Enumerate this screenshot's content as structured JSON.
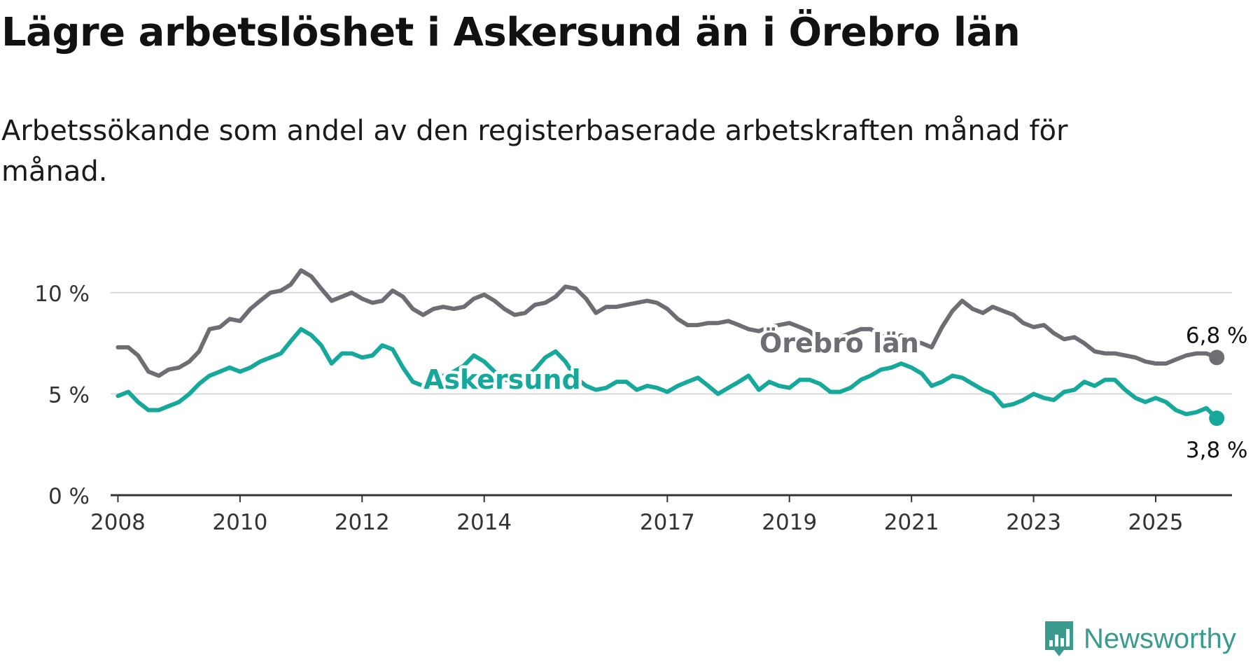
{
  "title": "Lägre arbetslöshet i Askersund än i Örebro län",
  "subtitle": "Arbetssökande som andel av den registerbaserade arbetskraften månad för månad.",
  "brand": {
    "name": "Newsworthy",
    "icon": "newsworthy-logo-icon",
    "color": "#3a9a8e"
  },
  "chart_data": {
    "type": "line",
    "x_axis": {
      "type": "time",
      "range": [
        2007.88,
        2026.25
      ],
      "ticks": [
        2008,
        2010,
        2012,
        2014,
        2017,
        2019,
        2021,
        2023,
        2025
      ],
      "tick_labels": [
        "2008",
        "2010",
        "2012",
        "2014",
        "2017",
        "2019",
        "2021",
        "2023",
        "2025"
      ]
    },
    "y_axis": {
      "range": [
        0,
        12
      ],
      "ticks": [
        0,
        5,
        10
      ],
      "tick_labels": [
        "0 %",
        "5 %",
        "10 %"
      ]
    },
    "grid": true,
    "series": [
      {
        "name": "Örebro län",
        "color": "#6e6d73",
        "end_label": "6,8 %",
        "end_value": 6.8,
        "points": [
          [
            2008.0,
            7.3
          ],
          [
            2008.17,
            7.3
          ],
          [
            2008.33,
            6.9
          ],
          [
            2008.5,
            6.1
          ],
          [
            2008.67,
            5.9
          ],
          [
            2008.83,
            6.2
          ],
          [
            2009.0,
            6.3
          ],
          [
            2009.17,
            6.6
          ],
          [
            2009.33,
            7.1
          ],
          [
            2009.5,
            8.2
          ],
          [
            2009.67,
            8.3
          ],
          [
            2009.83,
            8.7
          ],
          [
            2010.0,
            8.6
          ],
          [
            2010.17,
            9.2
          ],
          [
            2010.33,
            9.6
          ],
          [
            2010.5,
            10.0
          ],
          [
            2010.67,
            10.1
          ],
          [
            2010.83,
            10.4
          ],
          [
            2011.0,
            11.1
          ],
          [
            2011.17,
            10.8
          ],
          [
            2011.33,
            10.2
          ],
          [
            2011.5,
            9.6
          ],
          [
            2011.67,
            9.8
          ],
          [
            2011.83,
            10.0
          ],
          [
            2012.0,
            9.7
          ],
          [
            2012.17,
            9.5
          ],
          [
            2012.33,
            9.6
          ],
          [
            2012.5,
            10.1
          ],
          [
            2012.67,
            9.8
          ],
          [
            2012.83,
            9.2
          ],
          [
            2013.0,
            8.9
          ],
          [
            2013.17,
            9.2
          ],
          [
            2013.33,
            9.3
          ],
          [
            2013.5,
            9.2
          ],
          [
            2013.67,
            9.3
          ],
          [
            2013.83,
            9.7
          ],
          [
            2014.0,
            9.9
          ],
          [
            2014.17,
            9.6
          ],
          [
            2014.33,
            9.2
          ],
          [
            2014.5,
            8.9
          ],
          [
            2014.67,
            9.0
          ],
          [
            2014.83,
            9.4
          ],
          [
            2015.0,
            9.5
          ],
          [
            2015.17,
            9.8
          ],
          [
            2015.33,
            10.3
          ],
          [
            2015.5,
            10.2
          ],
          [
            2015.67,
            9.7
          ],
          [
            2015.83,
            9.0
          ],
          [
            2016.0,
            9.3
          ],
          [
            2016.17,
            9.3
          ],
          [
            2016.33,
            9.4
          ],
          [
            2016.5,
            9.5
          ],
          [
            2016.67,
            9.6
          ],
          [
            2016.83,
            9.5
          ],
          [
            2017.0,
            9.2
          ],
          [
            2017.17,
            8.7
          ],
          [
            2017.33,
            8.4
          ],
          [
            2017.5,
            8.4
          ],
          [
            2017.67,
            8.5
          ],
          [
            2017.83,
            8.5
          ],
          [
            2018.0,
            8.6
          ],
          [
            2018.17,
            8.4
          ],
          [
            2018.33,
            8.2
          ],
          [
            2018.5,
            8.1
          ],
          [
            2018.67,
            8.3
          ],
          [
            2018.83,
            8.4
          ],
          [
            2019.0,
            8.5
          ],
          [
            2019.17,
            8.3
          ],
          [
            2019.33,
            8.1
          ],
          [
            2019.5,
            7.6
          ],
          [
            2019.67,
            7.7
          ],
          [
            2019.83,
            7.8
          ],
          [
            2020.0,
            8.0
          ],
          [
            2020.17,
            8.2
          ],
          [
            2020.33,
            8.2
          ],
          [
            2020.5,
            7.9
          ],
          [
            2020.67,
            7.6
          ],
          [
            2020.83,
            7.9
          ],
          [
            2021.0,
            7.6
          ],
          [
            2021.17,
            7.5
          ],
          [
            2021.33,
            7.3
          ],
          [
            2021.5,
            8.3
          ],
          [
            2021.67,
            9.1
          ],
          [
            2021.83,
            9.6
          ],
          [
            2022.0,
            9.2
          ],
          [
            2022.17,
            9.0
          ],
          [
            2022.33,
            9.3
          ],
          [
            2022.5,
            9.1
          ],
          [
            2022.67,
            8.9
          ],
          [
            2022.83,
            8.5
          ],
          [
            2023.0,
            8.3
          ],
          [
            2023.17,
            8.4
          ],
          [
            2023.33,
            8.0
          ],
          [
            2023.5,
            7.7
          ],
          [
            2023.67,
            7.8
          ],
          [
            2023.83,
            7.5
          ],
          [
            2024.0,
            7.1
          ],
          [
            2024.17,
            7.0
          ],
          [
            2024.33,
            7.0
          ],
          [
            2024.5,
            6.9
          ],
          [
            2024.67,
            6.8
          ],
          [
            2024.83,
            6.6
          ],
          [
            2025.0,
            6.5
          ],
          [
            2025.17,
            6.5
          ],
          [
            2025.33,
            6.7
          ],
          [
            2025.5,
            6.9
          ],
          [
            2025.67,
            7.0
          ],
          [
            2025.83,
            7.0
          ],
          [
            2026.0,
            6.8
          ]
        ]
      },
      {
        "name": "Askersund",
        "color": "#16a89b",
        "end_label": "3,8 %",
        "end_value": 3.8,
        "points": [
          [
            2008.0,
            4.9
          ],
          [
            2008.17,
            5.1
          ],
          [
            2008.33,
            4.6
          ],
          [
            2008.5,
            4.2
          ],
          [
            2008.67,
            4.2
          ],
          [
            2008.83,
            4.4
          ],
          [
            2009.0,
            4.6
          ],
          [
            2009.17,
            5.0
          ],
          [
            2009.33,
            5.5
          ],
          [
            2009.5,
            5.9
          ],
          [
            2009.67,
            6.1
          ],
          [
            2009.83,
            6.3
          ],
          [
            2010.0,
            6.1
          ],
          [
            2010.17,
            6.3
          ],
          [
            2010.33,
            6.6
          ],
          [
            2010.5,
            6.8
          ],
          [
            2010.67,
            7.0
          ],
          [
            2010.83,
            7.6
          ],
          [
            2011.0,
            8.2
          ],
          [
            2011.17,
            7.9
          ],
          [
            2011.33,
            7.4
          ],
          [
            2011.5,
            6.5
          ],
          [
            2011.67,
            7.0
          ],
          [
            2011.83,
            7.0
          ],
          [
            2012.0,
            6.8
          ],
          [
            2012.17,
            6.9
          ],
          [
            2012.33,
            7.4
          ],
          [
            2012.5,
            7.2
          ],
          [
            2012.67,
            6.3
          ],
          [
            2012.83,
            5.6
          ],
          [
            2013.0,
            5.4
          ],
          [
            2013.17,
            5.6
          ],
          [
            2013.33,
            5.9
          ],
          [
            2013.5,
            6.1
          ],
          [
            2013.67,
            6.4
          ],
          [
            2013.83,
            6.9
          ],
          [
            2014.0,
            6.6
          ],
          [
            2014.17,
            6.1
          ],
          [
            2014.33,
            5.7
          ],
          [
            2014.5,
            5.6
          ],
          [
            2014.67,
            5.8
          ],
          [
            2014.83,
            6.2
          ],
          [
            2015.0,
            6.8
          ],
          [
            2015.17,
            7.1
          ],
          [
            2015.33,
            6.6
          ],
          [
            2015.5,
            5.8
          ],
          [
            2015.67,
            5.4
          ],
          [
            2015.83,
            5.2
          ],
          [
            2016.0,
            5.3
          ],
          [
            2016.17,
            5.6
          ],
          [
            2016.33,
            5.6
          ],
          [
            2016.5,
            5.2
          ],
          [
            2016.67,
            5.4
          ],
          [
            2016.83,
            5.3
          ],
          [
            2017.0,
            5.1
          ],
          [
            2017.17,
            5.4
          ],
          [
            2017.33,
            5.6
          ],
          [
            2017.5,
            5.8
          ],
          [
            2017.67,
            5.4
          ],
          [
            2017.83,
            5.0
          ],
          [
            2018.0,
            5.3
          ],
          [
            2018.17,
            5.6
          ],
          [
            2018.33,
            5.9
          ],
          [
            2018.5,
            5.2
          ],
          [
            2018.67,
            5.6
          ],
          [
            2018.83,
            5.4
          ],
          [
            2019.0,
            5.3
          ],
          [
            2019.17,
            5.7
          ],
          [
            2019.33,
            5.7
          ],
          [
            2019.5,
            5.5
          ],
          [
            2019.67,
            5.1
          ],
          [
            2019.83,
            5.1
          ],
          [
            2020.0,
            5.3
          ],
          [
            2020.17,
            5.7
          ],
          [
            2020.33,
            5.9
          ],
          [
            2020.5,
            6.2
          ],
          [
            2020.67,
            6.3
          ],
          [
            2020.83,
            6.5
          ],
          [
            2021.0,
            6.3
          ],
          [
            2021.17,
            6.0
          ],
          [
            2021.33,
            5.4
          ],
          [
            2021.5,
            5.6
          ],
          [
            2021.67,
            5.9
          ],
          [
            2021.83,
            5.8
          ],
          [
            2022.0,
            5.5
          ],
          [
            2022.17,
            5.2
          ],
          [
            2022.33,
            5.0
          ],
          [
            2022.5,
            4.4
          ],
          [
            2022.67,
            4.5
          ],
          [
            2022.83,
            4.7
          ],
          [
            2023.0,
            5.0
          ],
          [
            2023.17,
            4.8
          ],
          [
            2023.33,
            4.7
          ],
          [
            2023.5,
            5.1
          ],
          [
            2023.67,
            5.2
          ],
          [
            2023.83,
            5.6
          ],
          [
            2024.0,
            5.4
          ],
          [
            2024.17,
            5.7
          ],
          [
            2024.33,
            5.7
          ],
          [
            2024.5,
            5.2
          ],
          [
            2024.67,
            4.8
          ],
          [
            2024.83,
            4.6
          ],
          [
            2025.0,
            4.8
          ],
          [
            2025.17,
            4.6
          ],
          [
            2025.33,
            4.2
          ],
          [
            2025.5,
            4.0
          ],
          [
            2025.67,
            4.1
          ],
          [
            2025.83,
            4.3
          ],
          [
            2026.0,
            3.8
          ]
        ]
      }
    ]
  }
}
